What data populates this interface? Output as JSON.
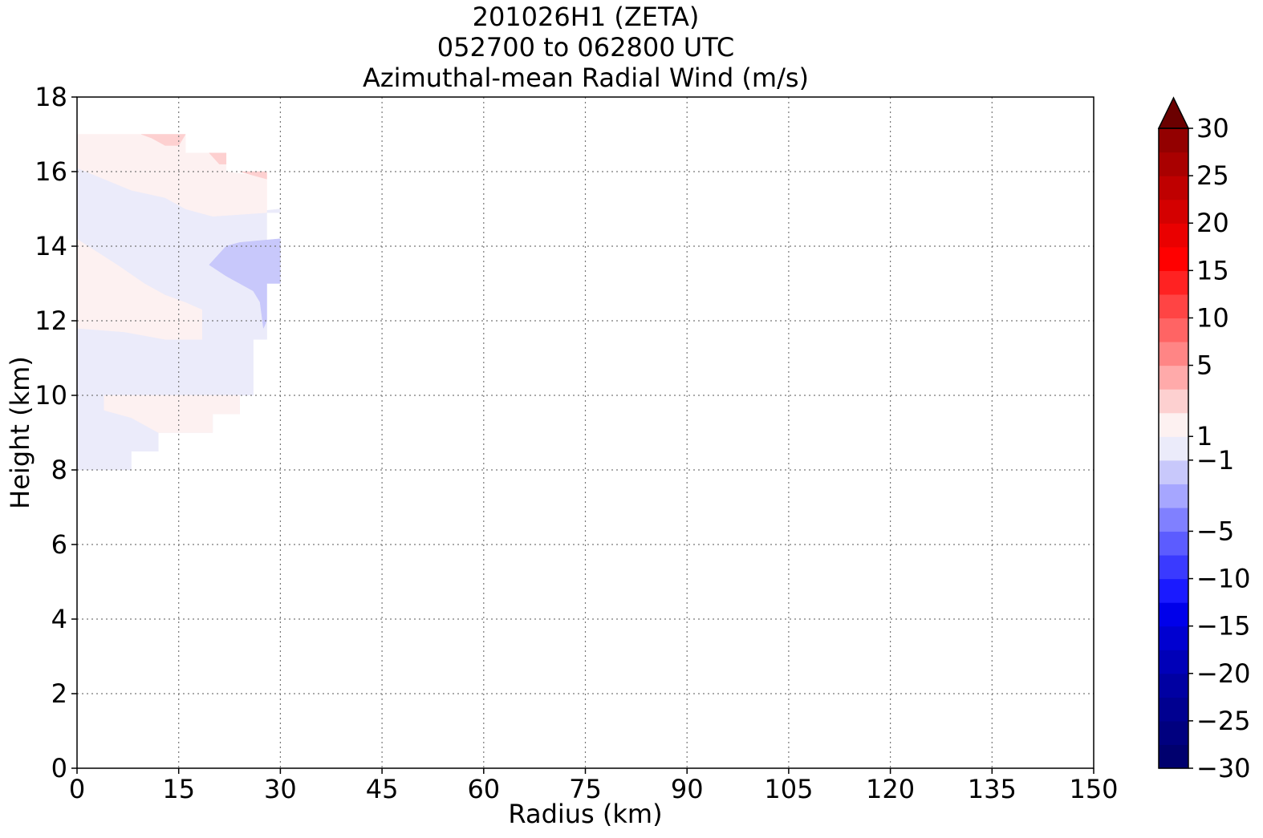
{
  "chart_data": {
    "type": "heatmap",
    "title_lines": [
      "201026H1 (ZETA)",
      "052700 to 062800 UTC",
      "Azimuthal-mean Radial Wind (m/s)"
    ],
    "xlabel": "Radius (km)",
    "ylabel": "Height (km)",
    "xlim": [
      0,
      150
    ],
    "ylim": [
      0,
      18
    ],
    "xticks": [
      0,
      15,
      30,
      45,
      60,
      75,
      90,
      105,
      120,
      135,
      150
    ],
    "yticks": [
      0,
      2,
      4,
      6,
      8,
      10,
      12,
      14,
      16,
      18
    ],
    "grid": true,
    "colorbar": {
      "label_values": [
        30,
        25,
        20,
        15,
        10,
        5,
        1,
        -1,
        -5,
        -10,
        -15,
        -20,
        -25,
        -30
      ],
      "label_text": [
        "30",
        "25",
        "20",
        "15",
        "10",
        "5",
        "1",
        "−1",
        "−5",
        "−10",
        "−15",
        "−20",
        "−25",
        "−30"
      ],
      "extend": "max",
      "extend_color": "#6b0000",
      "bands": [
        {
          "from": -30,
          "to": -27.5,
          "color": "#00006e"
        },
        {
          "from": -27.5,
          "to": -25,
          "color": "#00007f"
        },
        {
          "from": -25,
          "to": -22.5,
          "color": "#000090"
        },
        {
          "from": -22.5,
          "to": -20,
          "color": "#0000a2"
        },
        {
          "from": -20,
          "to": -17.5,
          "color": "#0000b8"
        },
        {
          "from": -17.5,
          "to": -15,
          "color": "#0000d0"
        },
        {
          "from": -15,
          "to": -12.5,
          "color": "#0000ea"
        },
        {
          "from": -12.5,
          "to": -10,
          "color": "#1a1aff"
        },
        {
          "from": -10,
          "to": -7.5,
          "color": "#3a3aff"
        },
        {
          "from": -7.5,
          "to": -5,
          "color": "#5c5cff"
        },
        {
          "from": -5,
          "to": -3,
          "color": "#8080ff"
        },
        {
          "from": -3,
          "to": -2,
          "color": "#a6a6ff"
        },
        {
          "from": -2,
          "to": -1,
          "color": "#c8c8fb"
        },
        {
          "from": -1,
          "to": 1,
          "color": "#ebebfa"
        },
        {
          "from": 1,
          "to": 2,
          "color": "#fdf1f1"
        },
        {
          "from": 2,
          "to": 3,
          "color": "#fdd0d0"
        },
        {
          "from": 3,
          "to": 5,
          "color": "#ffaaaa"
        },
        {
          "from": 5,
          "to": 7.5,
          "color": "#ff8585"
        },
        {
          "from": 7.5,
          "to": 10,
          "color": "#ff6464"
        },
        {
          "from": 10,
          "to": 12.5,
          "color": "#ff4444"
        },
        {
          "from": 12.5,
          "to": 15,
          "color": "#ff2222"
        },
        {
          "from": 15,
          "to": 17.5,
          "color": "#ff0000"
        },
        {
          "from": 17.5,
          "to": 20,
          "color": "#ea0000"
        },
        {
          "from": 20,
          "to": 22.5,
          "color": "#d40000"
        },
        {
          "from": 22.5,
          "to": 25,
          "color": "#bf0000"
        },
        {
          "from": 25,
          "to": 27.5,
          "color": "#a90000"
        },
        {
          "from": 27.5,
          "to": 30,
          "color": "#930000"
        }
      ]
    },
    "regions": [
      {
        "name": "low-inflow",
        "value": -0.5,
        "color": "#ebebfa",
        "points": [
          [
            0,
            8
          ],
          [
            8,
            8
          ],
          [
            8,
            8.5
          ],
          [
            12,
            8.5
          ],
          [
            12,
            9
          ],
          [
            16,
            9
          ],
          [
            20,
            9
          ],
          [
            20,
            9.5
          ],
          [
            24,
            9.5
          ],
          [
            24,
            10
          ],
          [
            26,
            10
          ],
          [
            26,
            11.5
          ],
          [
            28,
            11.5
          ],
          [
            28,
            12
          ],
          [
            26,
            11.5
          ],
          [
            18.5,
            11.5
          ],
          [
            13,
            11.5
          ],
          [
            7,
            11.7
          ],
          [
            0,
            11.8
          ]
        ]
      },
      {
        "name": "low-outflow",
        "value": 0.5,
        "color": "#fdf1f1",
        "points": [
          [
            4,
            10
          ],
          [
            24,
            10
          ],
          [
            24,
            9.5
          ],
          [
            20,
            9.5
          ],
          [
            20,
            9
          ],
          [
            12,
            9
          ],
          [
            8,
            9.4
          ],
          [
            4,
            9.6
          ]
        ]
      },
      {
        "name": "mid-outflow",
        "value": 0.5,
        "color": "#fdf1f1",
        "points": [
          [
            0,
            11.8
          ],
          [
            7,
            11.7
          ],
          [
            13,
            11.5
          ],
          [
            18.5,
            11.5
          ],
          [
            18.5,
            12.3
          ],
          [
            16,
            12.5
          ],
          [
            13,
            12.7
          ],
          [
            10,
            13
          ],
          [
            6,
            13.5
          ],
          [
            0,
            14.2
          ]
        ]
      },
      {
        "name": "upper-inflow",
        "value": -0.5,
        "color": "#ebebfa",
        "points": [
          [
            0,
            14.2
          ],
          [
            6,
            13.5
          ],
          [
            10,
            13
          ],
          [
            13,
            12.7
          ],
          [
            16,
            12.5
          ],
          [
            18.5,
            12.3
          ],
          [
            18.5,
            11.5
          ],
          [
            28,
            11.5
          ],
          [
            28,
            14.9
          ],
          [
            30,
            14.9
          ],
          [
            30,
            15
          ],
          [
            20,
            14.8
          ],
          [
            16,
            15
          ],
          [
            13,
            15.3
          ],
          [
            8,
            15.5
          ],
          [
            4,
            15.8
          ],
          [
            0,
            16.1
          ]
        ]
      },
      {
        "name": "upper-inflow-core",
        "value": -1.5,
        "color": "#c8c8fb",
        "points": [
          [
            19.5,
            13.5
          ],
          [
            22,
            14
          ],
          [
            24,
            14.1
          ],
          [
            30,
            14.2
          ],
          [
            30,
            13
          ],
          [
            28,
            13
          ],
          [
            28,
            12
          ],
          [
            27.5,
            11.8
          ],
          [
            27,
            12.5
          ],
          [
            26,
            12.8
          ],
          [
            24,
            13
          ],
          [
            22,
            13.2
          ]
        ]
      },
      {
        "name": "top-outflow",
        "value": 0.5,
        "color": "#fdf1f1",
        "points": [
          [
            0,
            16.1
          ],
          [
            4,
            15.8
          ],
          [
            8,
            15.5
          ],
          [
            13,
            15.3
          ],
          [
            16,
            15
          ],
          [
            20,
            14.8
          ],
          [
            28,
            14.9
          ],
          [
            28,
            15.9
          ],
          [
            26,
            15.9
          ],
          [
            22,
            16
          ],
          [
            22,
            16.5
          ],
          [
            16,
            16.5
          ],
          [
            16,
            17
          ],
          [
            0,
            17
          ]
        ]
      },
      {
        "name": "top-outflow-core",
        "value": 2.5,
        "color": "#fdd0d0",
        "points": [
          [
            9.5,
            17
          ],
          [
            16,
            17
          ],
          [
            15,
            16.7
          ],
          [
            13,
            16.7
          ],
          [
            11,
            16.9
          ]
        ]
      },
      {
        "name": "top-outflow-core-2",
        "value": 2.5,
        "color": "#fdd0d0",
        "points": [
          [
            19.5,
            16.5
          ],
          [
            22,
            16.5
          ],
          [
            22,
            16.2
          ],
          [
            21,
            16.2
          ]
        ]
      },
      {
        "name": "top-outflow-core-3",
        "value": 2.5,
        "color": "#fdd0d0",
        "points": [
          [
            24,
            16
          ],
          [
            28,
            16
          ],
          [
            28,
            15.8
          ],
          [
            26,
            15.9
          ]
        ]
      }
    ]
  }
}
